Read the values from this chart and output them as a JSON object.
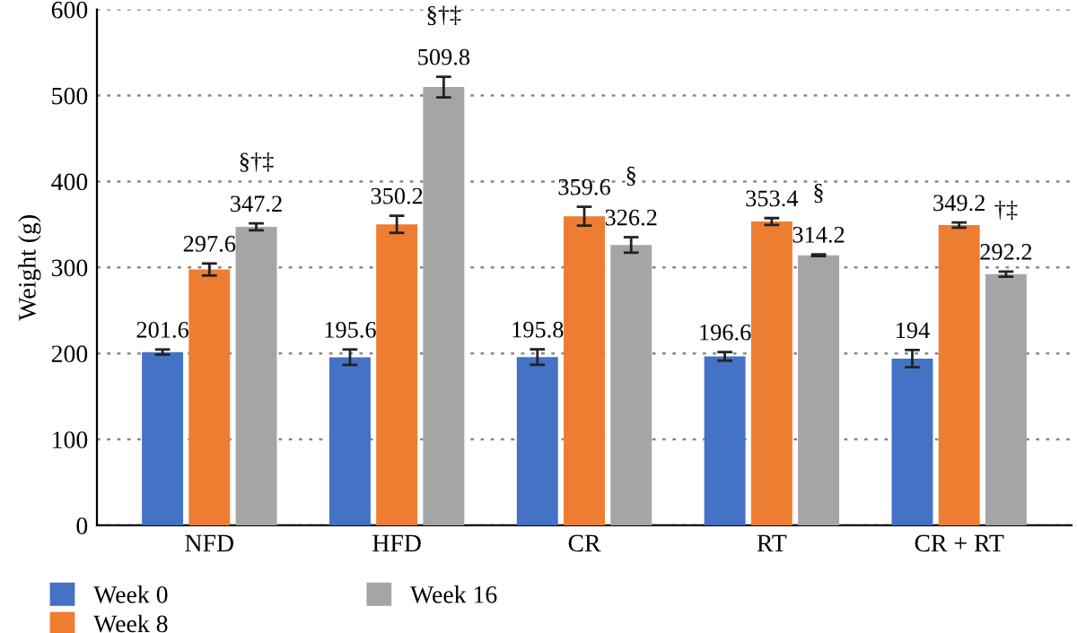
{
  "chart_data": {
    "type": "bar",
    "ylabel": "Weight (g)",
    "categories": [
      "NFD",
      "HFD",
      "CR",
      "RT",
      "CR + RT"
    ],
    "series": [
      {
        "name": "Week 0",
        "color": "#4472c4",
        "values": [
          201.6,
          195.6,
          195.8,
          196.6,
          194
        ],
        "errors": [
          3,
          9,
          9,
          5,
          10
        ]
      },
      {
        "name": "Week 8",
        "color": "#ed7d31",
        "values": [
          297.6,
          350.2,
          359.6,
          353.4,
          349.2
        ],
        "errors": [
          7,
          10,
          11,
          4,
          3
        ]
      },
      {
        "name": "Week 16",
        "color": "#a5a5a5",
        "values": [
          347.2,
          509.8,
          326.2,
          314.2,
          292.2
        ],
        "errors": [
          4,
          12,
          9,
          1,
          3
        ]
      }
    ],
    "annotations": [
      "§†‡",
      "§†‡",
      "§",
      "§",
      "†‡"
    ],
    "ylim": [
      0,
      600
    ],
    "yticks": [
      0,
      100,
      200,
      300,
      400,
      500,
      600
    ],
    "grid": "y",
    "legend": "bottom",
    "data_labels": true
  }
}
